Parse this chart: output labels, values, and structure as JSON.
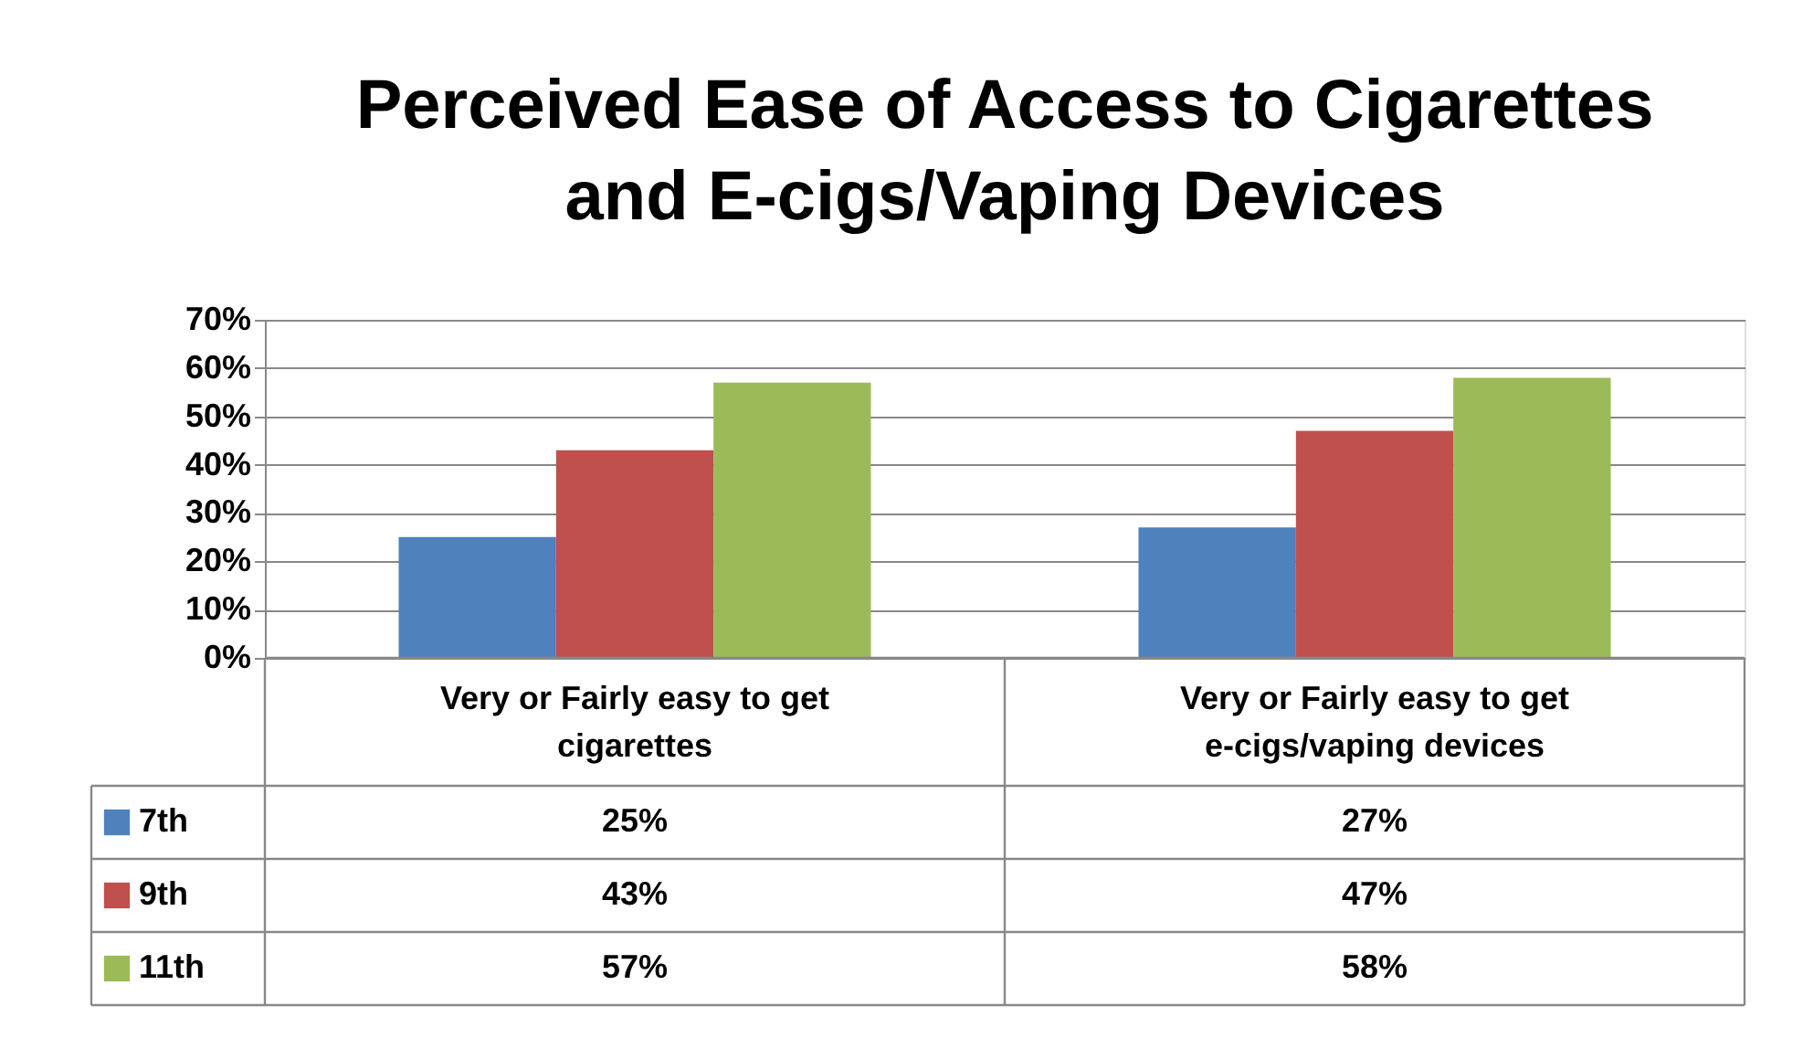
{
  "chart_data": {
    "type": "bar",
    "title": "Perceived Ease of Access to Cigarettes and E-cigs/Vaping Devices",
    "categories": [
      "Very or Fairly easy to get cigarettes",
      "Very or Fairly easy to get e-cigs/vaping devices"
    ],
    "series": [
      {
        "name": "7th",
        "color": "#4f81bd",
        "values": [
          25,
          27
        ],
        "value_labels": [
          "25%",
          "27%"
        ]
      },
      {
        "name": "9th",
        "color": "#c0504d",
        "values": [
          43,
          47
        ],
        "value_labels": [
          "43%",
          "47%"
        ]
      },
      {
        "name": "11th",
        "color": "#9bbb59",
        "values": [
          57,
          58
        ],
        "value_labels": [
          "57%",
          "58%"
        ]
      }
    ],
    "ylim": [
      0,
      70
    ],
    "yticks": [
      {
        "value": 0,
        "label": "0%"
      },
      {
        "value": 10,
        "label": "10%"
      },
      {
        "value": 20,
        "label": "20%"
      },
      {
        "value": 30,
        "label": "30%"
      },
      {
        "value": 40,
        "label": "40%"
      },
      {
        "value": 50,
        "label": "50%"
      },
      {
        "value": 60,
        "label": "60%"
      },
      {
        "value": 70,
        "label": "70%"
      }
    ],
    "grid": "y",
    "legend": "bottom"
  }
}
